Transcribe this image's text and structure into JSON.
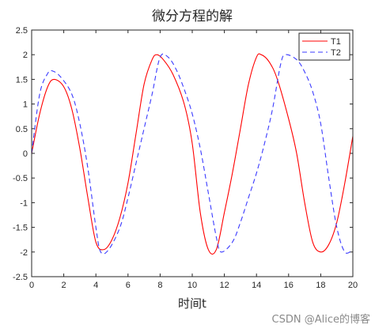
{
  "chart_data": {
    "type": "line",
    "title": "微分方程的解",
    "xlabel": "时间t",
    "ylabel": "",
    "xlim": [
      0,
      20
    ],
    "ylim": [
      -2.5,
      2.5
    ],
    "xticks": [
      "0",
      "2",
      "4",
      "6",
      "8",
      "10",
      "12",
      "14",
      "16",
      "18",
      "20"
    ],
    "yticks": [
      "2.5",
      "2",
      "1.5",
      "1",
      "0.5",
      "0",
      "-0.5",
      "-1",
      "-1.5",
      "-2",
      "-2.5"
    ],
    "grid": false,
    "legend_position": "top-right",
    "series": [
      {
        "name": "T1",
        "color": "#ff0000",
        "dash": "solid",
        "x": [
          0,
          0.5,
          1.0,
          1.4,
          2.0,
          2.5,
          3.0,
          3.5,
          4.0,
          4.5,
          5.0,
          5.5,
          6.0,
          6.5,
          7.0,
          7.5,
          7.8,
          8.2,
          8.8,
          9.5,
          10.0,
          10.5,
          11.0,
          11.5,
          12.0,
          12.5,
          13.0,
          13.5,
          14.0,
          14.3,
          14.8,
          15.3,
          16.0,
          16.5,
          17.0,
          17.5,
          18.0,
          18.5,
          19.0,
          19.5,
          20.0
        ],
        "y": [
          0,
          0.8,
          1.35,
          1.5,
          1.35,
          0.9,
          0.1,
          -0.9,
          -1.8,
          -1.95,
          -1.75,
          -1.3,
          -0.6,
          0.4,
          1.4,
          1.9,
          2.0,
          1.9,
          1.6,
          1.0,
          0.2,
          -1.2,
          -1.95,
          -1.95,
          -1.2,
          -0.4,
          0.5,
          1.4,
          1.95,
          2.0,
          1.85,
          1.5,
          0.7,
          0.0,
          -1.0,
          -1.8,
          -2.0,
          -1.85,
          -1.4,
          -0.6,
          0.35
        ]
      },
      {
        "name": "T2",
        "color": "#3b3bff",
        "dash": "dashed",
        "x": [
          0,
          0.5,
          1.0,
          1.3,
          1.8,
          2.5,
          3.0,
          3.5,
          4.0,
          4.3,
          4.8,
          5.5,
          6.0,
          6.5,
          7.0,
          7.5,
          8.0,
          8.5,
          9.0,
          9.5,
          10.0,
          10.5,
          11.0,
          11.5,
          11.8,
          12.5,
          13.0,
          13.5,
          14.0,
          14.5,
          15.0,
          15.5,
          15.8,
          16.5,
          17.0,
          17.5,
          18.0,
          18.5,
          19.0,
          19.5,
          20.0
        ],
        "y": [
          0.0,
          1.2,
          1.62,
          1.67,
          1.55,
          1.2,
          0.6,
          -0.3,
          -1.5,
          -2.0,
          -1.95,
          -1.5,
          -0.9,
          -0.2,
          0.5,
          1.2,
          1.95,
          1.95,
          1.7,
          1.3,
          0.8,
          0.1,
          -0.8,
          -1.7,
          -2.0,
          -1.8,
          -1.4,
          -0.9,
          -0.4,
          0.2,
          0.9,
          1.8,
          2.0,
          1.9,
          1.65,
          1.25,
          0.6,
          -0.5,
          -1.5,
          -2.0,
          -1.95
        ]
      }
    ]
  },
  "watermark": "CSDN @Alice的博客"
}
